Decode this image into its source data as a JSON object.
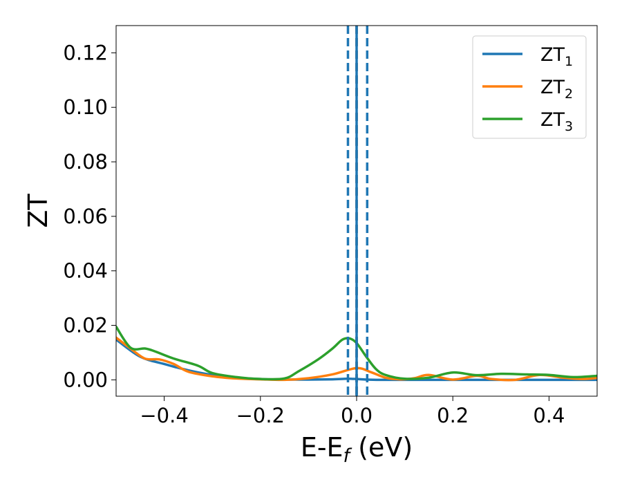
{
  "chart_data": {
    "type": "line",
    "xlabel": {
      "base": "E-E",
      "sub": "f",
      "suffix": " (eV)"
    },
    "ylabel": "ZT",
    "xlim": [
      -0.5,
      0.5
    ],
    "ylim": [
      -0.006,
      0.13
    ],
    "xticks": [
      -0.4,
      -0.2,
      0.0,
      0.2,
      0.4
    ],
    "xtick_labels": [
      "−0.4",
      "−0.2",
      "0.0",
      "0.2",
      "0.4"
    ],
    "yticks": [
      0.0,
      0.02,
      0.04,
      0.06,
      0.08,
      0.1,
      0.12
    ],
    "ytick_labels": [
      "0.00",
      "0.02",
      "0.04",
      "0.06",
      "0.08",
      "0.10",
      "0.12"
    ],
    "grid": false,
    "legend_position": "top-right",
    "vlines": [
      {
        "x": 0.0,
        "color": "#000000",
        "style": "dashed"
      },
      {
        "x": -0.018,
        "color": "#1f77b4",
        "style": "dashed"
      },
      {
        "x": 0.0,
        "color": "#1f77b4",
        "style": "solid"
      },
      {
        "x": 0.022,
        "color": "#1f77b4",
        "style": "dashed"
      }
    ],
    "series": [
      {
        "name": "ZT",
        "sub": "1",
        "color": "#1f77b4",
        "x": [
          -0.5,
          -0.45,
          -0.4,
          -0.35,
          -0.3,
          -0.25,
          -0.2,
          -0.15,
          -0.1,
          -0.05,
          -0.02,
          0.0,
          0.02,
          0.05,
          0.1,
          0.2,
          0.3,
          0.4,
          0.5
        ],
        "y": [
          0.0148,
          0.0085,
          0.0058,
          0.0035,
          0.0018,
          0.0008,
          0.0003,
          0.0001,
          0.0001,
          0.0002,
          0.0004,
          0.0003,
          0.0001,
          0.0,
          0.0,
          0.0,
          0.0,
          0.0,
          0.0
        ]
      },
      {
        "name": "ZT",
        "sub": "2",
        "color": "#ff7f0e",
        "x": [
          -0.5,
          -0.47,
          -0.44,
          -0.41,
          -0.38,
          -0.35,
          -0.3,
          -0.25,
          -0.2,
          -0.15,
          -0.1,
          -0.05,
          0.0,
          0.03,
          0.06,
          0.09,
          0.12,
          0.15,
          0.2,
          0.25,
          0.28,
          0.33,
          0.38,
          0.43,
          0.47,
          0.5
        ],
        "y": [
          0.0155,
          0.0115,
          0.0078,
          0.0075,
          0.0058,
          0.003,
          0.0013,
          0.0005,
          0.0002,
          0.0,
          0.0006,
          0.002,
          0.0043,
          0.0028,
          0.0008,
          0.0002,
          0.0006,
          0.0018,
          0.0001,
          0.0015,
          0.0003,
          0.0,
          0.0018,
          0.0008,
          0.0003,
          0.0007
        ]
      },
      {
        "name": "ZT",
        "sub": "3",
        "color": "#2ca02c",
        "x": [
          -0.5,
          -0.47,
          -0.44,
          -0.42,
          -0.38,
          -0.33,
          -0.3,
          -0.25,
          -0.2,
          -0.15,
          -0.12,
          -0.08,
          -0.05,
          -0.03,
          -0.015,
          0.0,
          0.02,
          0.04,
          0.06,
          0.1,
          0.15,
          0.2,
          0.25,
          0.3,
          0.35,
          0.4,
          0.45,
          0.5
        ],
        "y": [
          0.0195,
          0.0118,
          0.0115,
          0.0105,
          0.0078,
          0.0052,
          0.0025,
          0.001,
          0.0003,
          0.0005,
          0.0032,
          0.0075,
          0.0115,
          0.0147,
          0.0152,
          0.0135,
          0.0085,
          0.004,
          0.0018,
          0.0004,
          0.0008,
          0.0027,
          0.0017,
          0.0022,
          0.002,
          0.0018,
          0.001,
          0.0015
        ]
      }
    ]
  }
}
